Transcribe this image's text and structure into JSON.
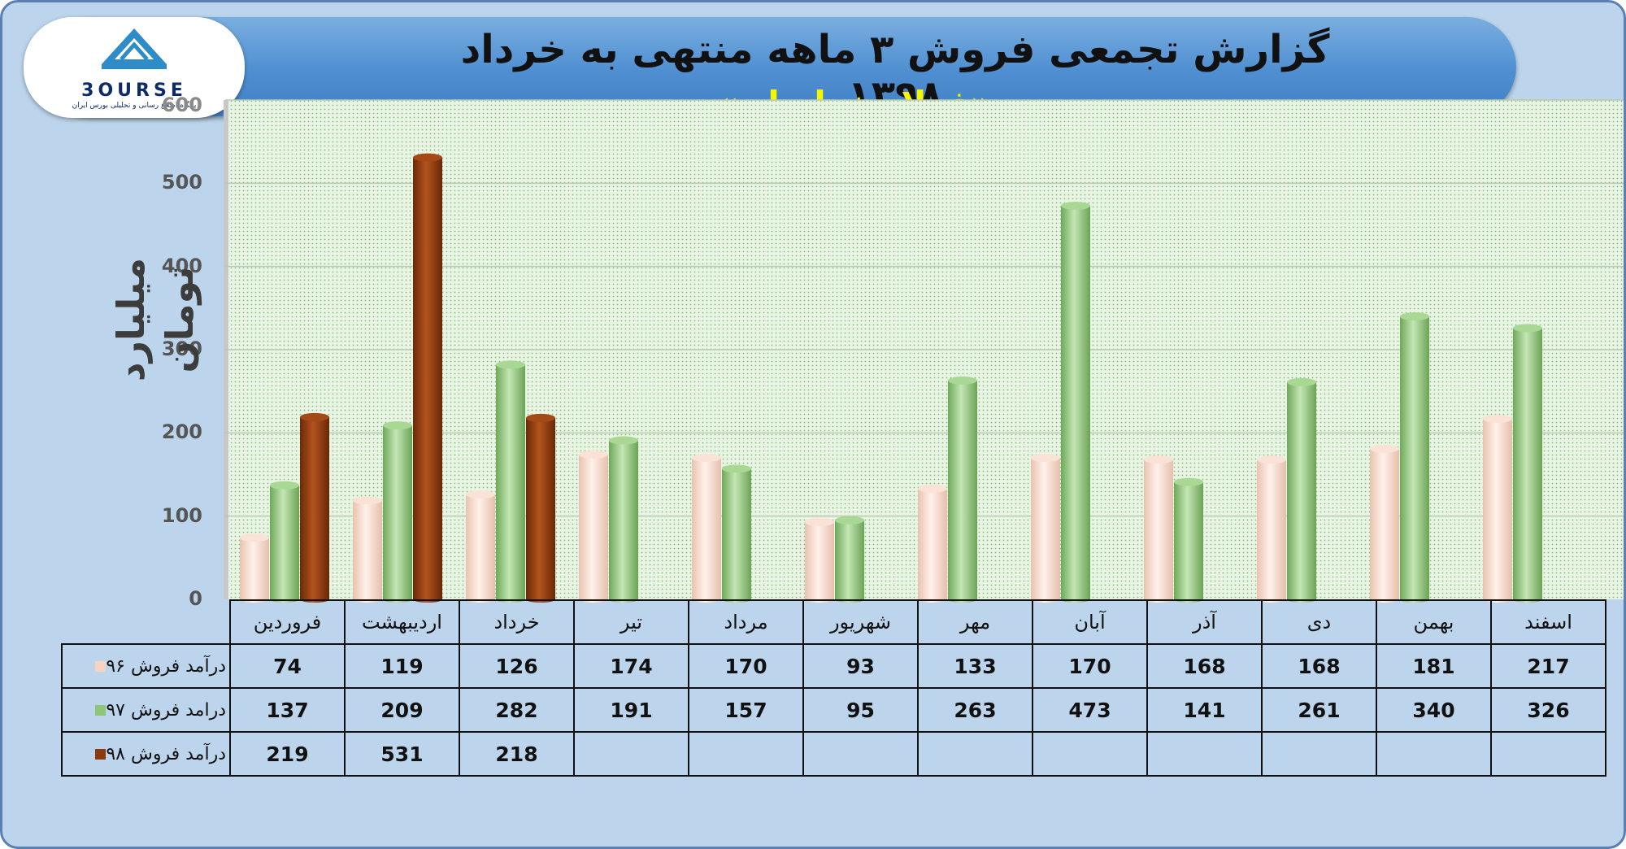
{
  "header": {
    "title": "گزارش تجمعی فروش ۳ ماهه منتهی به خرداد ۱۳۹۸",
    "subtitle": "«فولاد خراسان»"
  },
  "logo": {
    "wordmark": "3OURSE",
    "caption": "پایگاه اطلاع رسانی و تحلیلی بورس ایران"
  },
  "colors": {
    "series_96": "#f7d3c2",
    "series_97": "#8fc576",
    "series_98": "#8b3a0f",
    "plot_bg": "#e7f2e2",
    "banner": "#4f8fd1"
  },
  "chart_data": {
    "type": "bar",
    "ylabel": "میلیارد تومان",
    "ylim": [
      0,
      600
    ],
    "yticks": [
      0,
      100,
      200,
      300,
      400,
      500,
      600
    ],
    "grid": true,
    "categories": [
      "فروردین",
      "اردیبهشت",
      "خرداد",
      "تیر",
      "مرداد",
      "شهریور",
      "مهر",
      "آبان",
      "آذر",
      "دی",
      "بهمن",
      "اسفند"
    ],
    "series": [
      {
        "name": "درآمد فروش ۹۶",
        "color": "#f7d3c2",
        "values": [
          74,
          119,
          126,
          174,
          170,
          93,
          133,
          170,
          168,
          168,
          181,
          217
        ]
      },
      {
        "name": "درامد فروش ۹۷",
        "color": "#8fc576",
        "values": [
          137,
          209,
          282,
          191,
          157,
          95,
          263,
          473,
          141,
          261,
          340,
          326
        ]
      },
      {
        "name": "درآمد فروش ۹۸",
        "color": "#8b3a0f",
        "values": [
          219,
          531,
          218,
          null,
          null,
          null,
          null,
          null,
          null,
          null,
          null,
          null
        ]
      }
    ]
  }
}
